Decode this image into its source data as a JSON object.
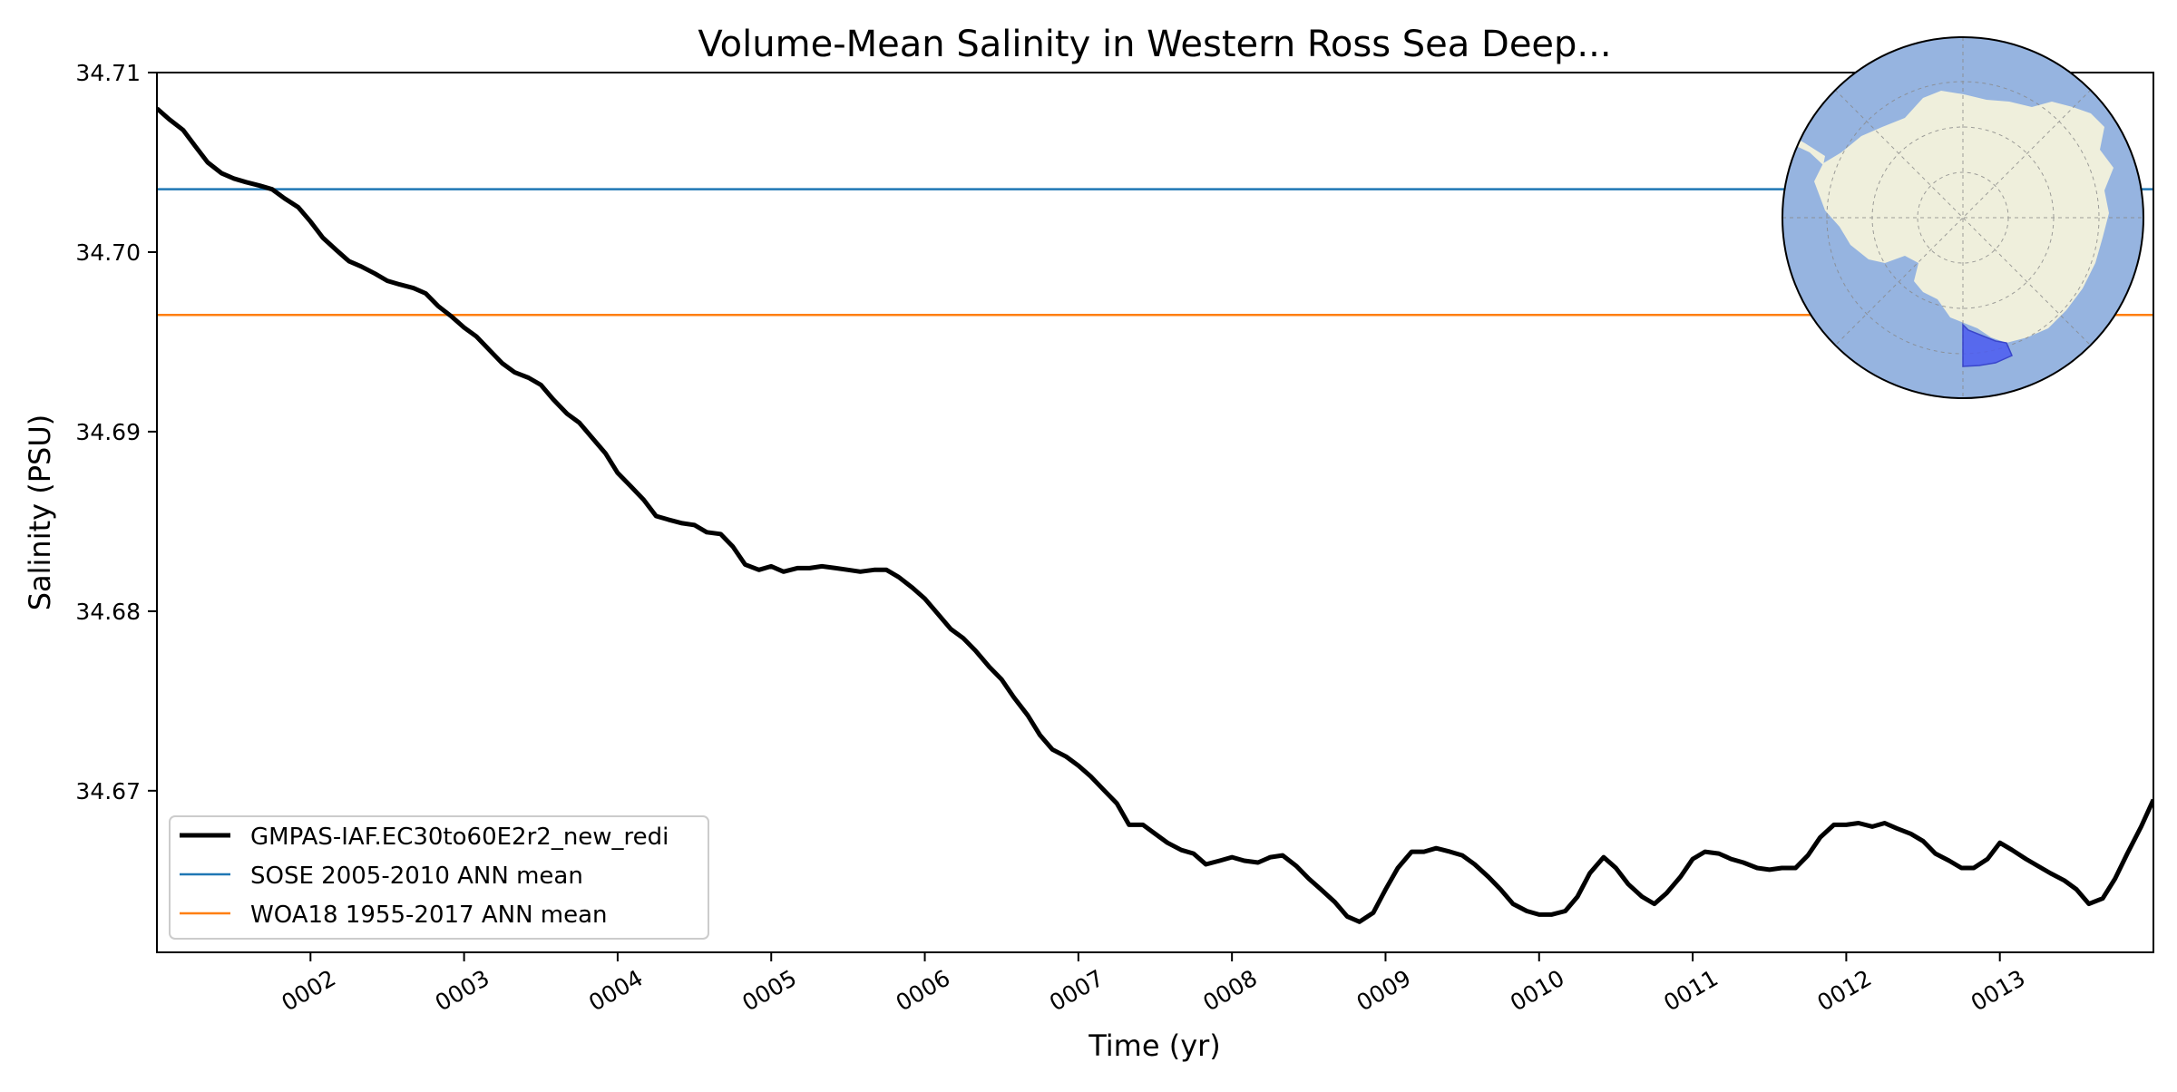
{
  "chart_data": {
    "type": "line",
    "title": "Volume-Mean Salinity in Western Ross Sea Deep...",
    "xlabel": "Time (yr)",
    "ylabel": "Salinity (PSU)",
    "xlim": [
      1.0,
      14.0
    ],
    "ylim": [
      34.661,
      34.71
    ],
    "x_ticks": [
      2,
      3,
      4,
      5,
      6,
      7,
      8,
      9,
      10,
      11,
      12,
      13
    ],
    "x_tick_labels": [
      "0002",
      "0003",
      "0004",
      "0005",
      "0006",
      "0007",
      "0008",
      "0009",
      "0010",
      "0011",
      "0012",
      "0013"
    ],
    "y_ticks": [
      34.67,
      34.68,
      34.69,
      34.7,
      34.71
    ],
    "y_tick_labels": [
      "34.67",
      "34.68",
      "34.69",
      "34.70",
      "34.71"
    ],
    "grid": false,
    "legend_position": "lower-left",
    "series": [
      {
        "name": "GMPAS-IAF.EC30to60E2r2_new_redi",
        "color": "#000000",
        "x": [
          1.0,
          1.08,
          1.17,
          1.25,
          1.33,
          1.42,
          1.5,
          1.58,
          1.67,
          1.75,
          1.83,
          1.92,
          2.0,
          2.08,
          2.17,
          2.25,
          2.33,
          2.42,
          2.5,
          2.58,
          2.67,
          2.75,
          2.83,
          2.92,
          3.0,
          3.08,
          3.17,
          3.25,
          3.33,
          3.42,
          3.5,
          3.58,
          3.67,
          3.75,
          3.83,
          3.92,
          4.0,
          4.08,
          4.17,
          4.25,
          4.33,
          4.42,
          4.5,
          4.58,
          4.67,
          4.75,
          4.83,
          4.92,
          5.0,
          5.08,
          5.17,
          5.25,
          5.33,
          5.42,
          5.5,
          5.58,
          5.67,
          5.75,
          5.83,
          5.92,
          6.0,
          6.08,
          6.17,
          6.25,
          6.33,
          6.42,
          6.5,
          6.58,
          6.67,
          6.75,
          6.83,
          6.92,
          7.0,
          7.08,
          7.17,
          7.25,
          7.33,
          7.42,
          7.5,
          7.58,
          7.67,
          7.75,
          7.83,
          7.92,
          8.0,
          8.08,
          8.17,
          8.25,
          8.33,
          8.42,
          8.5,
          8.58,
          8.67,
          8.75,
          8.83,
          8.92,
          9.0,
          9.08,
          9.17,
          9.25,
          9.33,
          9.42,
          9.5,
          9.58,
          9.67,
          9.75,
          9.83,
          9.92,
          10.0,
          10.08,
          10.17,
          10.25,
          10.33,
          10.42,
          10.5,
          10.58,
          10.67,
          10.75,
          10.83,
          10.92,
          11.0,
          11.08,
          11.17,
          11.25,
          11.33,
          11.42,
          11.5,
          11.58,
          11.67,
          11.75,
          11.83,
          11.92,
          12.0,
          12.08,
          12.17,
          12.25,
          12.33,
          12.42,
          12.5,
          12.58,
          12.67,
          12.75,
          12.83,
          12.92,
          13.0,
          13.08,
          13.17,
          13.25,
          13.33,
          13.42,
          13.5,
          13.58,
          13.67,
          13.75,
          13.83,
          13.92,
          14.0
        ],
        "y": [
          34.708,
          34.7074,
          34.7068,
          34.7059,
          34.705,
          34.7044,
          34.7041,
          34.7039,
          34.7037,
          34.7035,
          34.703,
          34.7025,
          34.7017,
          34.7008,
          34.7001,
          34.6995,
          34.6992,
          34.6988,
          34.6984,
          34.6982,
          34.698,
          34.6977,
          34.697,
          34.6964,
          34.6958,
          34.6953,
          34.6945,
          34.6938,
          34.6933,
          34.693,
          34.6926,
          34.6918,
          34.691,
          34.6905,
          34.6897,
          34.6888,
          34.6877,
          34.687,
          34.6862,
          34.6853,
          34.6851,
          34.6849,
          34.6848,
          34.6844,
          34.6843,
          34.6836,
          34.6826,
          34.6823,
          34.6825,
          34.6822,
          34.6824,
          34.6824,
          34.6825,
          34.6824,
          34.6823,
          34.6822,
          34.6823,
          34.6823,
          34.6819,
          34.6813,
          34.6807,
          34.6799,
          34.679,
          34.6785,
          34.6778,
          34.6769,
          34.6762,
          34.6752,
          34.6742,
          34.6731,
          34.6723,
          34.6719,
          34.6714,
          34.6708,
          34.67,
          34.6693,
          34.6681,
          34.6681,
          34.6676,
          34.6671,
          34.6667,
          34.6665,
          34.6659,
          34.6661,
          34.6663,
          34.6661,
          34.666,
          34.6663,
          34.6664,
          34.6658,
          34.6651,
          34.6645,
          34.6638,
          34.663,
          34.6627,
          34.6632,
          34.6645,
          34.6657,
          34.6666,
          34.6666,
          34.6668,
          34.6666,
          34.6664,
          34.6659,
          34.6652,
          34.6645,
          34.6637,
          34.6633,
          34.6631,
          34.6631,
          34.6633,
          34.6641,
          34.6654,
          34.6663,
          34.6657,
          34.6648,
          34.6641,
          34.6637,
          34.6643,
          34.6652,
          34.6662,
          34.6666,
          34.6665,
          34.6662,
          34.666,
          34.6657,
          34.6656,
          34.6657,
          34.6657,
          34.6664,
          34.6674,
          34.6681,
          34.6681,
          34.6682,
          34.668,
          34.6682,
          34.6679,
          34.6676,
          34.6672,
          34.6665,
          34.6661,
          34.6657,
          34.6657,
          34.6662,
          34.6671,
          34.6667,
          34.6662,
          34.6658,
          34.6654,
          34.665,
          34.6645,
          34.6637,
          34.664,
          34.6651,
          34.6665,
          34.668,
          34.6695
        ]
      },
      {
        "name": "SOSE 2005-2010 ANN mean",
        "color": "#1f77b4",
        "x": [
          1.0,
          14.0
        ],
        "y": [
          34.7035,
          34.7035
        ]
      },
      {
        "name": "WOA18 1955-2017 ANN mean",
        "color": "#ff7f0e",
        "x": [
          1.0,
          14.0
        ],
        "y": [
          34.6965,
          34.6965
        ]
      }
    ]
  },
  "inset_map": {
    "ocean_color": "#96b4e0",
    "land_color": "#efefdc",
    "region_color": "#4d5cf0"
  }
}
